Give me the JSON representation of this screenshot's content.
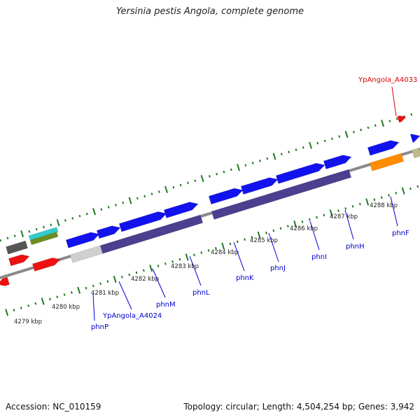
{
  "title": "Yersinia pestis Angola, complete genome",
  "footer": {
    "accession": "Accession: NC_010159",
    "summary": "Topology: circular; Length: 4,504,254 bp; Genes: 3,942"
  },
  "colors": {
    "backbone": "#8a8a8a",
    "tick": "#1f7a1f",
    "gene_blue": "#1212ee",
    "gene_purple": "#4b3f8f",
    "gene_red": "#ee1111",
    "gene_orange": "#ff8c00",
    "gene_gray": "#cfcfcf",
    "gene_dark": "#555555",
    "gene_cyan": "#33cccc",
    "gene_olive": "#6b8e23",
    "gene_khaki": "#c2b98a",
    "label_blue": "#0000cc",
    "label_red": "#dd0000"
  },
  "scale_labels": [
    "4279 kbp",
    "4280 kbp",
    "4281 kbp",
    "4282 kbp",
    "4283 kbp",
    "4284 kbp",
    "4285 kbp",
    "4286 kbp",
    "4287 kbp",
    "4288 kbp"
  ],
  "gene_labels": [
    {
      "text": "phnP",
      "color": "blue"
    },
    {
      "text": "YpAngola_A4024",
      "color": "blue"
    },
    {
      "text": "phnM",
      "color": "blue"
    },
    {
      "text": "phnL",
      "color": "blue"
    },
    {
      "text": "phnK",
      "color": "blue"
    },
    {
      "text": "phnJ",
      "color": "blue"
    },
    {
      "text": "phnI",
      "color": "blue"
    },
    {
      "text": "phnH",
      "color": "blue"
    },
    {
      "text": "phnF",
      "color": "blue"
    },
    {
      "text": "YpAngola_A4033",
      "color": "red"
    }
  ]
}
